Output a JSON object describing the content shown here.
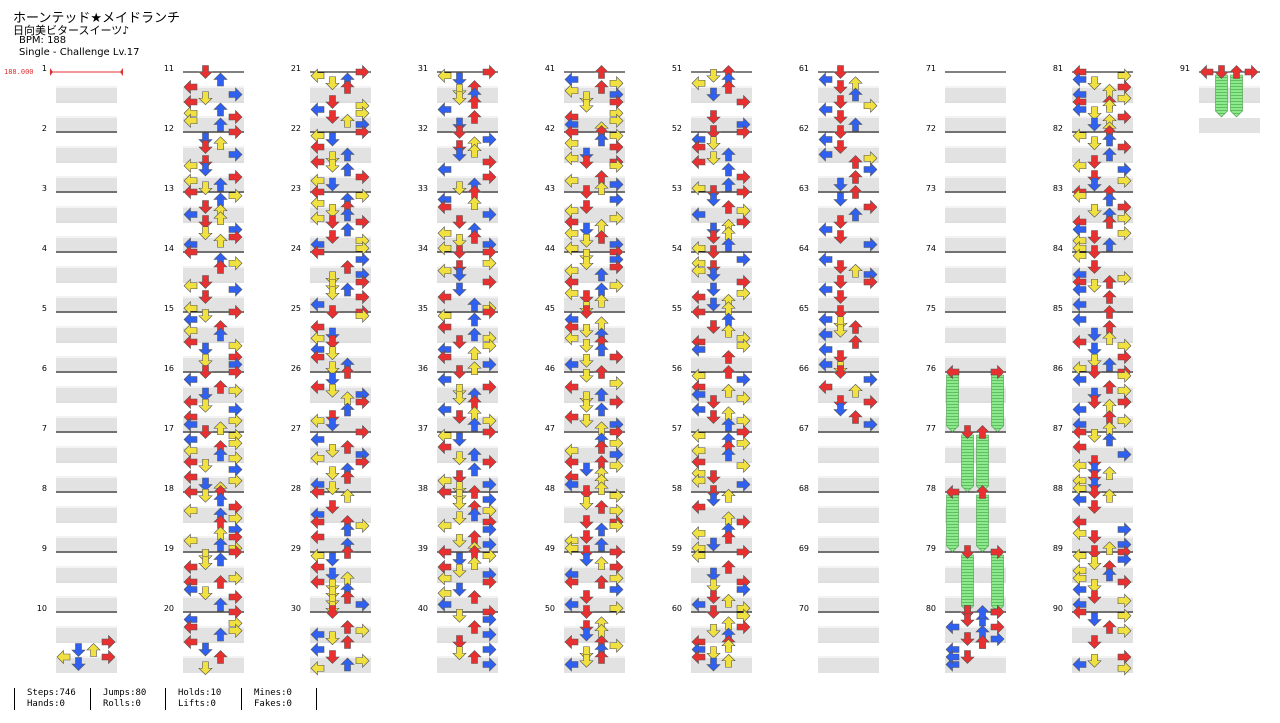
{
  "song": {
    "title": "ホーンテッド★メイドランチ",
    "artist": "日向美ビタースイーツ♪",
    "bpm_label": "BPM: 188",
    "difficulty": "Single - Challenge Lv.17"
  },
  "bpm_marker": "188.000",
  "measure_count": 91,
  "hold_segments": [
    {
      "measure": 76,
      "lane": 0,
      "end_measure": 77
    },
    {
      "measure": 76,
      "lane": 3,
      "end_measure": 77
    },
    {
      "measure": 77,
      "lane": 1,
      "end_measure": 78
    },
    {
      "measure": 77,
      "lane": 2,
      "end_measure": 78
    },
    {
      "measure": 78,
      "lane": 0,
      "end_measure": 79
    },
    {
      "measure": 78,
      "lane": 2,
      "end_measure": 79
    },
    {
      "measure": 79,
      "lane": 1,
      "end_measure": 80
    },
    {
      "measure": 79,
      "lane": 3,
      "end_measure": 80
    },
    {
      "measure": 91,
      "lane": 1,
      "end_measure": 91.75
    },
    {
      "measure": 91,
      "lane": 2,
      "end_measure": 91.75
    }
  ],
  "stats": {
    "steps": "Steps:746",
    "hands": "Hands:0",
    "jumps": "Jumps:80",
    "rolls": "Rolls:0",
    "holds": "Holds:10",
    "lifts": "Lifts:0",
    "mines": "Mines:0",
    "fakes": "Fakes:0"
  },
  "colors": {
    "quarter_note": "#e83030",
    "eighth_note": "#3060f0",
    "sixteenth_note": "#f0e040",
    "hold_body": "#80e080",
    "band_light": "#e2e2e2",
    "bpm_marker": "#e03030"
  }
}
